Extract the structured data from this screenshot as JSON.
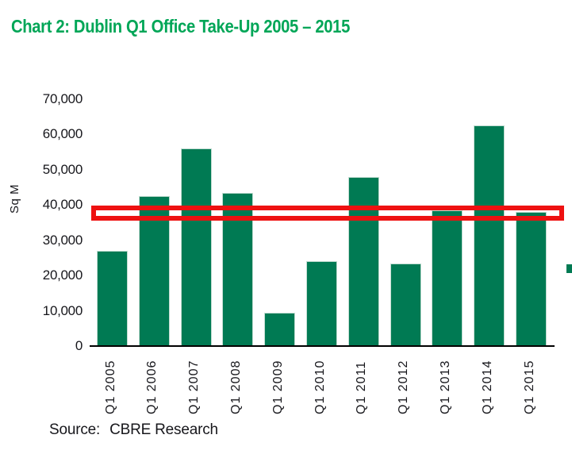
{
  "title": "Chart 2: Dublin Q1 Office Take-Up 2005 – 2015",
  "source": {
    "label": "Source:",
    "value": "CBRE Research"
  },
  "colors": {
    "title_green": "#00A657",
    "bar_green": "#007A53",
    "annotation_red": "#EE1111",
    "text_dark": "#17171c",
    "axis_black": "#000000"
  },
  "chart_data": {
    "type": "bar",
    "title": "Chart 2: Dublin Q1 Office Take-Up 2005 – 2015",
    "xlabel": "",
    "ylabel": "Sq M",
    "ylim": [
      0,
      70000
    ],
    "yticks": [
      0,
      10000,
      20000,
      30000,
      40000,
      50000,
      60000,
      70000
    ],
    "grid": false,
    "legend": "none",
    "categories": [
      "Q1 2005",
      "Q1 2006",
      "Q1 2007",
      "Q1 2008",
      "Q1 2009",
      "Q1 2010",
      "Q1 2011",
      "Q1 2012",
      "Q1 2013",
      "Q1 2014",
      "Q1 2015"
    ],
    "values": [
      27000,
      42500,
      56000,
      43500,
      9500,
      24000,
      48000,
      23500,
      38500,
      62500,
      38000
    ],
    "bar_color": "#007A53",
    "annotation": {
      "shape": "hollow-rectangle-highlight",
      "color": "#EE1111",
      "y_from": 35600,
      "y_to": 39800,
      "description": "red outline box highlighting the ~38,000 Sq M level across all bars"
    }
  }
}
